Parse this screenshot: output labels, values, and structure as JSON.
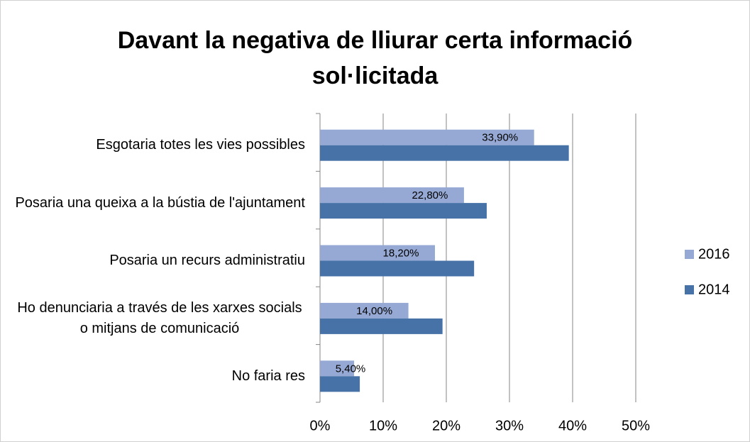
{
  "chart_data": {
    "type": "bar",
    "orientation": "horizontal",
    "title": "Davant la negativa de lliurar certa informació sol·licitada",
    "categories": [
      "Esgotaria totes les vies possibles",
      "Posaria una queixa a la bústia de l'ajuntament",
      "Posaria un recurs administratiu",
      "Ho denunciaria a través de les xarxes socials o mitjans de comunicació",
      "No faria res"
    ],
    "series": [
      {
        "name": "2016",
        "color": "#95a9d4",
        "values": [
          33.9,
          22.8,
          18.2,
          14.0,
          5.4
        ],
        "value_labels": [
          "33,90%",
          "22,80%",
          "18,20%",
          "14,00%",
          "5,40%"
        ]
      },
      {
        "name": "2014",
        "color": "#4672a8",
        "values": [
          39.4,
          26.4,
          24.4,
          19.4,
          6.3
        ]
      }
    ],
    "xlim": [
      0,
      50
    ],
    "xticks": [
      {
        "value": 0,
        "label": "0%"
      },
      {
        "value": 10,
        "label": "10%"
      },
      {
        "value": 20,
        "label": "20%"
      },
      {
        "value": 30,
        "label": "30%"
      },
      {
        "value": 40,
        "label": "40%"
      },
      {
        "value": 50,
        "label": "50%"
      }
    ],
    "grid": true,
    "legend": "right"
  }
}
